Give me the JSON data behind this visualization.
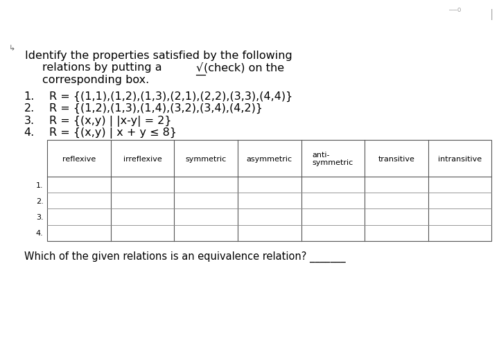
{
  "title_line1": "Identify the properties satisfied by the following",
  "title_line2a": "relations by putting a ",
  "title_line2b": "√",
  "title_line2c": "(check) on the",
  "title_line3": "corresponding box.",
  "items": [
    "R = {(1,1),(1,2),(1,3),(2,1),(2,2),(3,3),(4,4)}",
    "R = {(1,2),(1,3),(1,4),(3,2),(3,4),(4,2)}",
    "R = {(x,y) | |x-y| = 2}",
    "R = {(x,y) | x + y ≤ 8}"
  ],
  "item_nums": [
    "1.",
    "2.",
    "3.",
    "4."
  ],
  "col_headers": [
    "reflexive",
    "irreflexive",
    "symmetric",
    "asymmetric",
    "anti-\nsymmetric",
    "transitive",
    "intransitive"
  ],
  "row_labels": [
    "1.",
    "2.",
    "3.",
    "4."
  ],
  "footer": "Which of the given relations is an equivalence relation? _______",
  "bg_color": "#ffffff",
  "text_color": "#000000",
  "font_size_title": 11.5,
  "font_size_items": 11.5,
  "font_size_table": 8.0,
  "font_size_footer": 10.5,
  "font_family": "DejaVu Sans",
  "top_right_line": "——o",
  "top_right_vline": "|"
}
